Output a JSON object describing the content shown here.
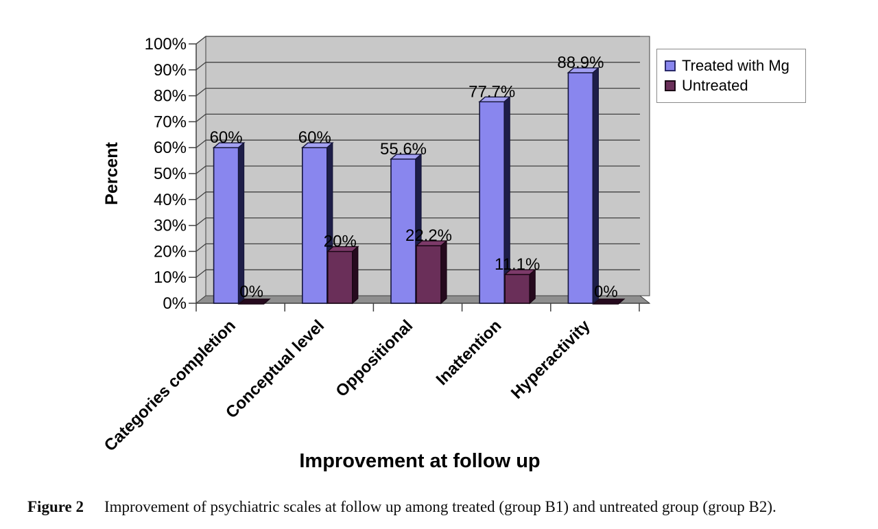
{
  "figure": {
    "caption_label": "Figure 2",
    "caption_text": "Improvement of psychiatric scales at follow up among treated (group B1) and untreated group (group B2)."
  },
  "chart_data": {
    "type": "bar",
    "style": "3d-grouped-columns",
    "title": "",
    "xlabel": "Improvement at follow up",
    "ylabel": "Percent",
    "ylim": [
      0,
      100
    ],
    "ytick_step": 10,
    "ytick_labels": [
      "0%",
      "10%",
      "20%",
      "30%",
      "40%",
      "50%",
      "60%",
      "70%",
      "80%",
      "90%",
      "100%"
    ],
    "categories": [
      "Categories completion",
      "Conceptual level",
      "Oppositional",
      "Inattention",
      "Hyperactivity"
    ],
    "series": [
      {
        "name": "Treated with Mg",
        "values": [
          60,
          60,
          55.6,
          77.7,
          88.9
        ],
        "data_labels": [
          "60%",
          "60%",
          "55.6%",
          "77.7%",
          "88.9%"
        ],
        "color": "#8986EE",
        "color_top": "#A3A0F2",
        "color_side": "#1E1E48",
        "stroke": "#15153A"
      },
      {
        "name": "Untreated",
        "values": [
          0,
          20,
          22.2,
          11.1,
          0
        ],
        "data_labels": [
          "0%",
          "20%",
          "22.2%",
          "11.1%",
          "0%"
        ],
        "color": "#6A2F59",
        "color_top": "#7C3A69",
        "color_side": "#260A1E",
        "stroke": "#1A0614"
      }
    ],
    "legend_position": "top-right",
    "grid": true,
    "grid_color": "#404040",
    "plot_bg": "#C8C8C8",
    "wall_side_bg": "#CFCFCF",
    "floor_bg": "#8F8F8F",
    "text_color": "#000000"
  }
}
